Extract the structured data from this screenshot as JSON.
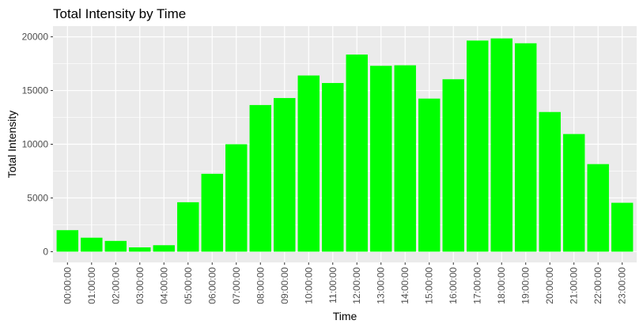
{
  "chart_data": {
    "type": "bar",
    "title": "Total Intensity by Time",
    "xlabel": "Time",
    "ylabel": "Total Intensity",
    "categories": [
      "00:00:00",
      "01:00:00",
      "02:00:00",
      "03:00:00",
      "04:00:00",
      "05:00:00",
      "06:00:00",
      "07:00:00",
      "08:00:00",
      "09:00:00",
      "10:00:00",
      "11:00:00",
      "12:00:00",
      "13:00:00",
      "14:00:00",
      "15:00:00",
      "16:00:00",
      "17:00:00",
      "18:00:00",
      "19:00:00",
      "20:00:00",
      "21:00:00",
      "22:00:00",
      "23:00:00"
    ],
    "values": [
      2000,
      1300,
      1000,
      400,
      600,
      4600,
      7250,
      10000,
      13650,
      14300,
      16400,
      15700,
      18350,
      17300,
      17350,
      14250,
      16050,
      19650,
      19850,
      19400,
      13000,
      10950,
      8150,
      4550
    ],
    "ylim": [
      -1000,
      21000
    ],
    "yticks": [
      0,
      5000,
      10000,
      15000,
      20000
    ],
    "ytick_labels": [
      "0",
      "5000",
      "10000",
      "15000",
      "20000"
    ],
    "grid": true,
    "bar_color": "#00ff00",
    "panel_color": "#ebebeb",
    "grid_color": "#ffffff"
  }
}
